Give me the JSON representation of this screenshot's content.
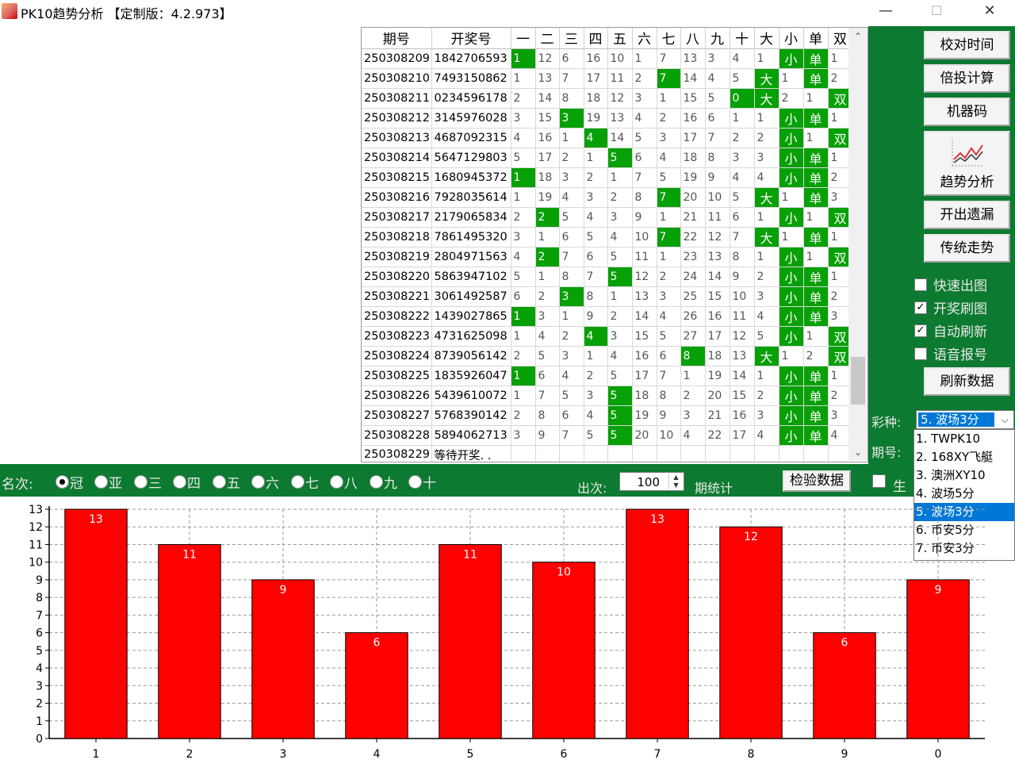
{
  "window": {
    "title": "PK10趋势分析 【定制版：4.2.973】",
    "minimize_glyph": "—",
    "maximize_glyph": "☐",
    "close_glyph": "✕"
  },
  "table": {
    "headers": [
      "期号",
      "开奖号",
      "一",
      "二",
      "三",
      "四",
      "五",
      "六",
      "七",
      "八",
      "九",
      "十",
      "大",
      "小",
      "单",
      "双"
    ],
    "rows": [
      {
        "id": "250308209",
        "num": "1842706593",
        "cells": [
          "1",
          "12",
          "6",
          "16",
          "10",
          "1",
          "7",
          "13",
          "3",
          "4",
          "1",
          "小",
          "单",
          "1"
        ],
        "hl": [
          0,
          11,
          12
        ]
      },
      {
        "id": "250308210",
        "num": "7493150862",
        "cells": [
          "1",
          "13",
          "7",
          "17",
          "11",
          "2",
          "7",
          "14",
          "4",
          "5",
          "大",
          "1",
          "单",
          "2"
        ],
        "hl": [
          6,
          10,
          12
        ]
      },
      {
        "id": "250308211",
        "num": "0234596178",
        "cells": [
          "2",
          "14",
          "8",
          "18",
          "12",
          "3",
          "1",
          "15",
          "5",
          "0",
          "大",
          "2",
          "1",
          "双"
        ],
        "hl": [
          9,
          10,
          13
        ]
      },
      {
        "id": "250308212",
        "num": "3145976028",
        "cells": [
          "3",
          "15",
          "3",
          "19",
          "13",
          "4",
          "2",
          "16",
          "6",
          "1",
          "1",
          "小",
          "单",
          "1"
        ],
        "hl": [
          2,
          11,
          12
        ]
      },
      {
        "id": "250308213",
        "num": "4687092315",
        "cells": [
          "4",
          "16",
          "1",
          "4",
          "14",
          "5",
          "3",
          "17",
          "7",
          "2",
          "2",
          "小",
          "1",
          "双"
        ],
        "hl": [
          3,
          11,
          13
        ]
      },
      {
        "id": "250308214",
        "num": "5647129803",
        "cells": [
          "5",
          "17",
          "2",
          "1",
          "5",
          "6",
          "4",
          "18",
          "8",
          "3",
          "3",
          "小",
          "单",
          "1"
        ],
        "hl": [
          4,
          11,
          12
        ]
      },
      {
        "id": "250308215",
        "num": "1680945372",
        "cells": [
          "1",
          "18",
          "3",
          "2",
          "1",
          "7",
          "5",
          "19",
          "9",
          "4",
          "4",
          "小",
          "单",
          "2"
        ],
        "hl": [
          0,
          11,
          12
        ]
      },
      {
        "id": "250308216",
        "num": "7928035614",
        "cells": [
          "1",
          "19",
          "4",
          "3",
          "2",
          "8",
          "7",
          "20",
          "10",
          "5",
          "大",
          "1",
          "单",
          "3"
        ],
        "hl": [
          6,
          10,
          12
        ]
      },
      {
        "id": "250308217",
        "num": "2179065834",
        "cells": [
          "2",
          "2",
          "5",
          "4",
          "3",
          "9",
          "1",
          "21",
          "11",
          "6",
          "1",
          "小",
          "1",
          "双"
        ],
        "hl": [
          1,
          11,
          13
        ]
      },
      {
        "id": "250308218",
        "num": "7861495320",
        "cells": [
          "3",
          "1",
          "6",
          "5",
          "4",
          "10",
          "7",
          "22",
          "12",
          "7",
          "大",
          "1",
          "单",
          "1"
        ],
        "hl": [
          6,
          10,
          12
        ]
      },
      {
        "id": "250308219",
        "num": "2804971563",
        "cells": [
          "4",
          "2",
          "7",
          "6",
          "5",
          "11",
          "1",
          "23",
          "13",
          "8",
          "1",
          "小",
          "1",
          "双"
        ],
        "hl": [
          1,
          11,
          13
        ]
      },
      {
        "id": "250308220",
        "num": "5863947102",
        "cells": [
          "5",
          "1",
          "8",
          "7",
          "5",
          "12",
          "2",
          "24",
          "14",
          "9",
          "2",
          "小",
          "单",
          "1"
        ],
        "hl": [
          4,
          11,
          12
        ]
      },
      {
        "id": "250308221",
        "num": "3061492587",
        "cells": [
          "6",
          "2",
          "3",
          "8",
          "1",
          "13",
          "3",
          "25",
          "15",
          "10",
          "3",
          "小",
          "单",
          "2"
        ],
        "hl": [
          2,
          11,
          12
        ]
      },
      {
        "id": "250308222",
        "num": "1439027865",
        "cells": [
          "1",
          "3",
          "1",
          "9",
          "2",
          "14",
          "4",
          "26",
          "16",
          "11",
          "4",
          "小",
          "单",
          "3"
        ],
        "hl": [
          0,
          11,
          12
        ]
      },
      {
        "id": "250308223",
        "num": "4731625098",
        "cells": [
          "1",
          "4",
          "2",
          "4",
          "3",
          "15",
          "5",
          "27",
          "17",
          "12",
          "5",
          "小",
          "1",
          "双"
        ],
        "hl": [
          3,
          11,
          13
        ]
      },
      {
        "id": "250308224",
        "num": "8739056142",
        "cells": [
          "2",
          "5",
          "3",
          "1",
          "4",
          "16",
          "6",
          "8",
          "18",
          "13",
          "大",
          "1",
          "2",
          "双"
        ],
        "hl": [
          7,
          10,
          13
        ]
      },
      {
        "id": "250308225",
        "num": "1835926047",
        "cells": [
          "1",
          "6",
          "4",
          "2",
          "5",
          "17",
          "7",
          "1",
          "19",
          "14",
          "1",
          "小",
          "单",
          "1"
        ],
        "hl": [
          0,
          11,
          12
        ]
      },
      {
        "id": "250308226",
        "num": "5439610072",
        "cells": [
          "1",
          "7",
          "5",
          "3",
          "5",
          "18",
          "8",
          "2",
          "20",
          "15",
          "2",
          "小",
          "单",
          "2"
        ],
        "hl": [
          4,
          11,
          12
        ]
      },
      {
        "id": "250308227",
        "num": "5768390142",
        "cells": [
          "2",
          "8",
          "6",
          "4",
          "5",
          "19",
          "9",
          "3",
          "21",
          "16",
          "3",
          "小",
          "单",
          "3"
        ],
        "hl": [
          4,
          11,
          12
        ]
      },
      {
        "id": "250308228",
        "num": "5894062713",
        "cells": [
          "3",
          "9",
          "7",
          "5",
          "5",
          "20",
          "10",
          "4",
          "22",
          "17",
          "4",
          "小",
          "单",
          "4"
        ],
        "hl": [
          4,
          11,
          12
        ]
      },
      {
        "id": "250308229",
        "num": "等待开奖. .",
        "cells": [
          "",
          "",
          "",
          "",
          "",
          "",
          "",
          "",
          "",
          "",
          "",
          "",
          "",
          ""
        ],
        "hl": []
      }
    ]
  },
  "right_panel": {
    "buttons": [
      "校对时间",
      "倍投计算",
      "机器码"
    ],
    "trend_button": "趋势分析",
    "buttons2": [
      "开出遗漏",
      "传统走势"
    ],
    "checkboxes": [
      {
        "label": "快速出图",
        "checked": false
      },
      {
        "label": "开奖刷图",
        "checked": true
      },
      {
        "label": "自动刷新",
        "checked": true
      },
      {
        "label": "语音报号",
        "checked": false
      }
    ],
    "refresh_button": "刷新数据",
    "lottery_label": "彩种:",
    "period_label": "期号:",
    "lottery_selected": "5. 波场3分",
    "check_mark": "✓",
    "combo_arrow": "⌵",
    "dropdown_options": [
      "1. TWPK10",
      "2. 168XY飞艇",
      "3. 澳洲XY10",
      "4. 波场5分",
      "5. 波场3分",
      "6. 币安5分",
      "7. 币安3分"
    ],
    "dropdown_selected_index": 4
  },
  "scrollbar": {
    "up_glyph": "⌃",
    "down_glyph": "⌄"
  },
  "controls": {
    "rank_label": "名次:",
    "ranks": [
      "冠",
      "亚",
      "三",
      "四",
      "五",
      "六",
      "七",
      "八",
      "九",
      "十"
    ],
    "rank_selected_index": 0,
    "count_label": "出次:",
    "count_value": "100",
    "spin_up": "▲",
    "spin_down": "▼",
    "period_stat_label": "期统计",
    "check_button": "检验数据",
    "trailing_label": "生"
  },
  "chart_data": {
    "type": "bar",
    "categories": [
      "1",
      "2",
      "3",
      "4",
      "5",
      "6",
      "7",
      "8",
      "9",
      "0"
    ],
    "values": [
      13,
      11,
      9,
      6,
      11,
      10,
      13,
      12,
      6,
      9
    ],
    "ylim": [
      0,
      13
    ],
    "yticks": [
      "0",
      "1",
      "2",
      "3",
      "4",
      "5",
      "6",
      "7",
      "8",
      "9",
      "10",
      "11",
      "12",
      "13"
    ],
    "bar_color": "#ff0000",
    "grid": true,
    "title": "",
    "xlabel": "",
    "ylabel": ""
  },
  "colors": {
    "panel_green": "#0c7a30",
    "cell_highlight": "#07a007",
    "selection_blue": "#0078d7"
  }
}
